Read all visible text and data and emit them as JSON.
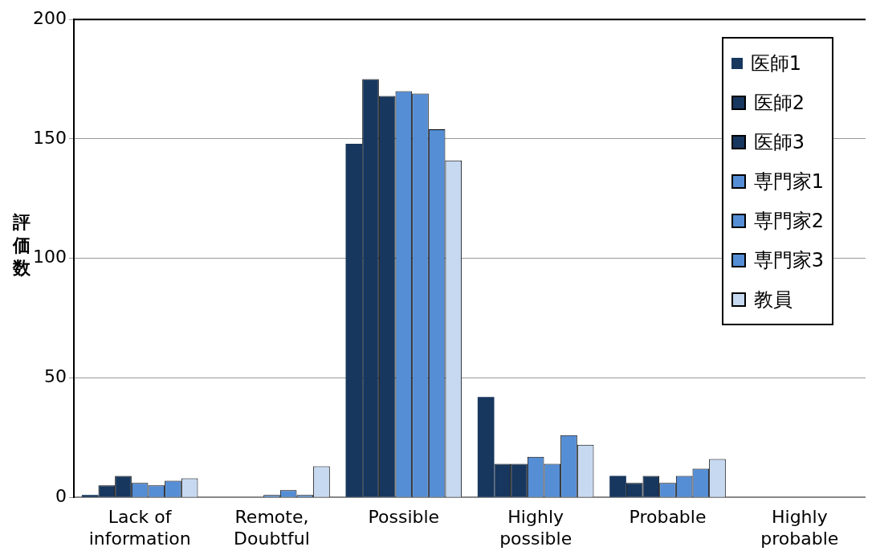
{
  "chart_data": {
    "type": "bar",
    "ylabel": "評価数",
    "categories": [
      "Lack of information",
      "Remote, Doubtful",
      "Possible",
      "Highly possible",
      "Probable",
      "Highly probable"
    ],
    "series": [
      {
        "name": "医師1",
        "color": "#17375e",
        "values": [
          1,
          0,
          148,
          42,
          9,
          0
        ]
      },
      {
        "name": "医師2",
        "color": "#17375e",
        "values": [
          5,
          0,
          175,
          14,
          6,
          0
        ]
      },
      {
        "name": "医師3",
        "color": "#17375e",
        "values": [
          9,
          0,
          168,
          14,
          9,
          0
        ]
      },
      {
        "name": "専門家1",
        "color": "#558ed5",
        "values": [
          6,
          1,
          170,
          17,
          6,
          0
        ]
      },
      {
        "name": "専門家2",
        "color": "#558ed5",
        "values": [
          5,
          3,
          169,
          14,
          9,
          0
        ]
      },
      {
        "name": "専門家3",
        "color": "#558ed5",
        "values": [
          7,
          1,
          154,
          26,
          12,
          0
        ]
      },
      {
        "name": "教員",
        "color": "#c6d9f1",
        "values": [
          8,
          13,
          141,
          22,
          16,
          0
        ]
      }
    ],
    "ylim": [
      0,
      200
    ],
    "yticks": [
      0,
      50,
      100,
      150,
      200
    ],
    "grid": "y",
    "legend": "top right"
  }
}
